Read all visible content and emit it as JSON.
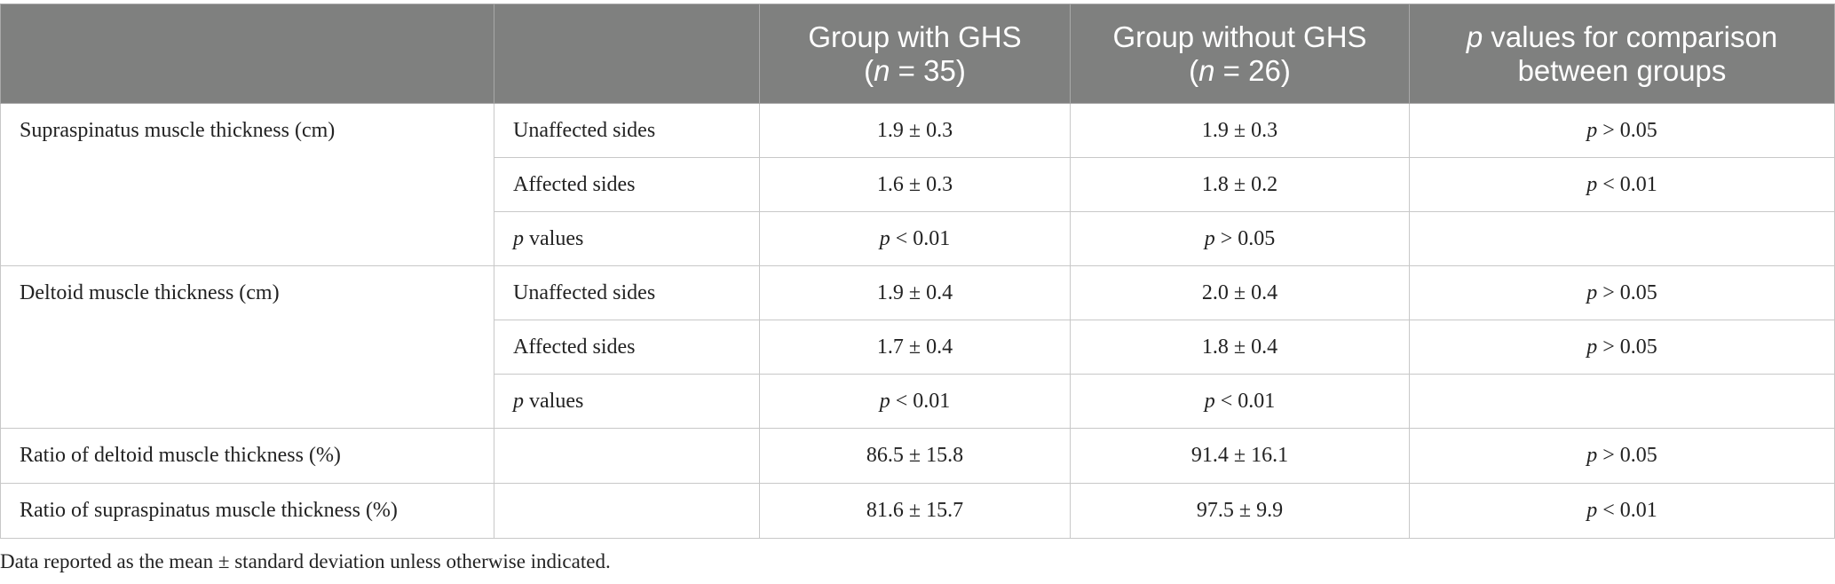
{
  "table": {
    "header": [
      null,
      null,
      [
        [
          "Group with GHS"
        ],
        [
          "(",
          {
            "italic": "n"
          },
          " = 35)"
        ]
      ],
      [
        [
          "Group without GHS"
        ],
        [
          "(",
          {
            "italic": "n"
          },
          " = 26)"
        ]
      ],
      [
        [
          {
            "italic": "p"
          },
          " values for comparison"
        ],
        [
          "between groups"
        ]
      ]
    ],
    "groups": [
      {
        "label": "Supraspinatus muscle thickness (cm)",
        "rows": [
          [
            "Unaffected sides",
            "1.9 ± 0.3",
            "1.9 ± 0.3",
            [
              {
                "italic": "p"
              },
              " > 0.05"
            ]
          ],
          [
            "Affected sides",
            "1.6 ± 0.3",
            "1.8 ± 0.2",
            [
              {
                "italic": "p"
              },
              " < 0.01"
            ]
          ],
          [
            [
              {
                "italic": "p"
              },
              " values"
            ],
            [
              {
                "italic": "p"
              },
              " < 0.01"
            ],
            [
              {
                "italic": "p"
              },
              " > 0.05"
            ],
            null
          ]
        ]
      },
      {
        "label": "Deltoid muscle thickness (cm)",
        "rows": [
          [
            "Unaffected sides",
            "1.9 ± 0.4",
            "2.0 ± 0.4",
            [
              {
                "italic": "p"
              },
              " > 0.05"
            ]
          ],
          [
            "Affected sides",
            "1.7 ± 0.4",
            "1.8 ± 0.4",
            [
              {
                "italic": "p"
              },
              " > 0.05"
            ]
          ],
          [
            [
              {
                "italic": "p"
              },
              " values"
            ],
            [
              {
                "italic": "p"
              },
              " < 0.01"
            ],
            [
              {
                "italic": "p"
              },
              " < 0.01"
            ],
            null
          ]
        ]
      },
      {
        "label": "Ratio of deltoid muscle thickness (%)",
        "rows": [
          [
            null,
            "86.5 ± 15.8",
            "91.4 ± 16.1",
            [
              {
                "italic": "p"
              },
              " > 0.05"
            ]
          ]
        ]
      },
      {
        "label": "Ratio of supraspinatus muscle thickness (%)",
        "rows": [
          [
            null,
            "81.6 ± 15.7",
            "97.5 ± 9.9",
            [
              {
                "italic": "p"
              },
              " < 0.01"
            ]
          ]
        ]
      }
    ],
    "footnote": "Data reported as the mean ± standard deviation unless otherwise indicated."
  }
}
